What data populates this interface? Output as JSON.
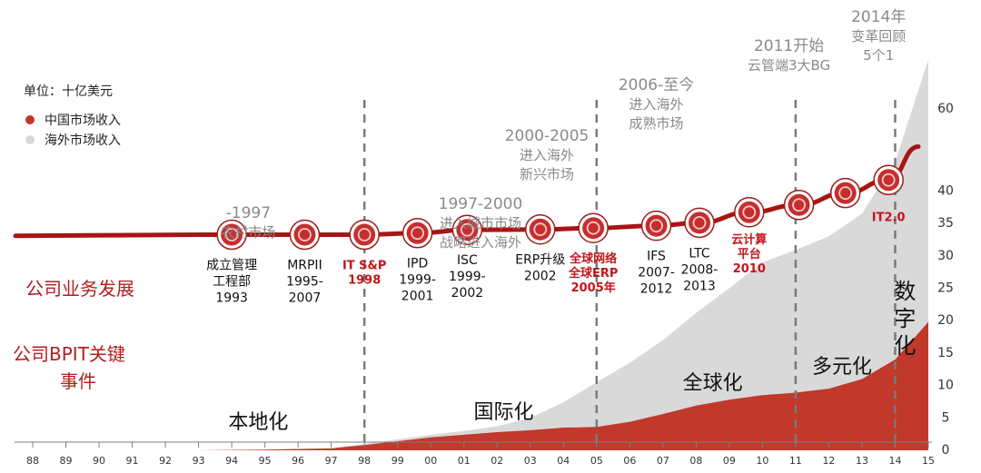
{
  "colors": {
    "china": "#c0392b",
    "overseas": "#d9d9d9",
    "curve": "#a81414",
    "era_text": "#8a8a8a",
    "milestone_red": "#c0161b",
    "axis": "#7f7f7f"
  },
  "legend": {
    "unit": "单位：十亿美元",
    "items": [
      {
        "label": "中国市场收入",
        "color": "#c0392b"
      },
      {
        "label": "海外市场收入",
        "color": "#d9d9d9"
      }
    ]
  },
  "row_labels": {
    "development": "公司业务发展",
    "events_line1": "公司BPIT关键",
    "events_line2": "事件"
  },
  "eras": [
    {
      "x": 94.5,
      "lines": [
        "-1997",
        "农村市场"
      ]
    },
    {
      "x": 101.5,
      "lines": [
        "1997-2000",
        "进入城市市场",
        "战略进入海外"
      ]
    },
    {
      "x": 103.5,
      "lines": [
        "2000-2005",
        "进入海外",
        "新兴市场"
      ]
    },
    {
      "x": 106.8,
      "lines": [
        "2006-至今",
        "进入海外",
        "成熟市场"
      ]
    },
    {
      "x": 110.8,
      "lines": [
        "2011开始",
        "云管端3大BG"
      ]
    },
    {
      "x": 113.5,
      "lines": [
        "2014年",
        "变革回顾",
        "5个1"
      ]
    }
  ],
  "phase_labels": [
    {
      "x": 94.8,
      "y": 4.5,
      "text": "本地化"
    },
    {
      "x": 102.2,
      "y": 6.0,
      "text": "国际化"
    },
    {
      "x": 108.5,
      "y": 10.5,
      "text": "全球化"
    },
    {
      "x": 112.4,
      "y": 13.0,
      "text": "多元化"
    },
    {
      "x": 114.3,
      "y": 19.5,
      "text": "数字化",
      "vertical": true
    }
  ],
  "milestones": [
    {
      "x": 94.0,
      "y": 17.5,
      "lines": [
        "成立管理",
        "工程部",
        "1993"
      ],
      "red": false
    },
    {
      "x": 96.2,
      "y": 17.5,
      "lines": [
        "MRPII",
        "1995-",
        "2007"
      ],
      "red": false
    },
    {
      "x": 98.0,
      "y": 17.5,
      "lines": [
        "IT S&P",
        "1998"
      ],
      "red": true
    },
    {
      "x": 99.6,
      "y": 18.2,
      "lines": [
        "IPD",
        "1999-",
        "2001"
      ],
      "red": false
    },
    {
      "x": 101.1,
      "y": 19.6,
      "lines": [
        "ISC",
        "1999-",
        "2002"
      ],
      "red": false
    },
    {
      "x": 103.3,
      "y": 19.8,
      "lines": [
        "ERP升级",
        "2002"
      ],
      "red": false
    },
    {
      "x": 104.9,
      "y": 20.4,
      "lines": [
        "全球网络",
        "全球ERP",
        "2005年"
      ],
      "red": true
    },
    {
      "x": 106.8,
      "y": 21.4,
      "lines": [
        "IFS",
        "2007-",
        "2012"
      ],
      "red": false
    },
    {
      "x": 108.1,
      "y": 22.7,
      "lines": [
        "LTC",
        "2008-",
        "2013"
      ],
      "red": false
    },
    {
      "x": 109.6,
      "y": 27.3,
      "lines": [
        "云计算",
        "平台",
        "2010"
      ],
      "red": true
    },
    {
      "x": 111.1,
      "y": 30.5,
      "lines": [],
      "red": false
    },
    {
      "x": 112.5,
      "y": 35.7,
      "lines": [],
      "red": false
    },
    {
      "x": 113.8,
      "y": 41.4,
      "lines": [
        "IT2.0"
      ],
      "red": true
    }
  ],
  "chart_data": {
    "type": "area",
    "title": "",
    "xlabel": "",
    "ylabel": "",
    "unit": "单位：十亿美元",
    "x_ticks": [
      "88",
      "89",
      "90",
      "91",
      "92",
      "93",
      "94",
      "95",
      "96",
      "97",
      "98",
      "99",
      "00",
      "01",
      "02",
      "03",
      "04",
      "05",
      "06",
      "07",
      "08",
      "09",
      "10",
      "11",
      "12",
      "13",
      "14",
      "15"
    ],
    "xlim": [
      88,
      115
    ],
    "ylim": [
      0,
      60
    ],
    "y_ticks": [
      0,
      5,
      10,
      15,
      20,
      25,
      30,
      35,
      40,
      60
    ],
    "dashed_vlines": [
      98,
      105,
      111,
      114
    ],
    "series": [
      {
        "name": "中国市场收入",
        "x": [
          88,
          93,
          95,
          97,
          98,
          99,
          100,
          101,
          102,
          103,
          104,
          105,
          106,
          107,
          108,
          109,
          110,
          111,
          112,
          113,
          114,
          115
        ],
        "values": [
          0,
          0,
          0.1,
          0.3,
          0.8,
          1.4,
          2.0,
          2.4,
          2.8,
          3.1,
          3.5,
          3.6,
          4.4,
          5.6,
          6.9,
          7.8,
          8.5,
          8.9,
          9.5,
          11.0,
          14.0,
          19.8
        ]
      },
      {
        "name": "海外市场收入",
        "x": [
          88,
          93,
          95,
          97,
          98,
          99,
          100,
          101,
          102,
          103,
          104,
          105,
          106,
          107,
          108,
          109,
          110,
          111,
          112,
          113,
          114,
          115
        ],
        "values": [
          0,
          0,
          0,
          0,
          0.2,
          0.3,
          0.4,
          0.6,
          0.9,
          1.9,
          3.9,
          6.9,
          9.1,
          11.4,
          14.3,
          17.2,
          20.5,
          22.0,
          23.5,
          25.5,
          30.5,
          40.5
        ]
      }
    ],
    "curve_label": "公司业务发展"
  }
}
